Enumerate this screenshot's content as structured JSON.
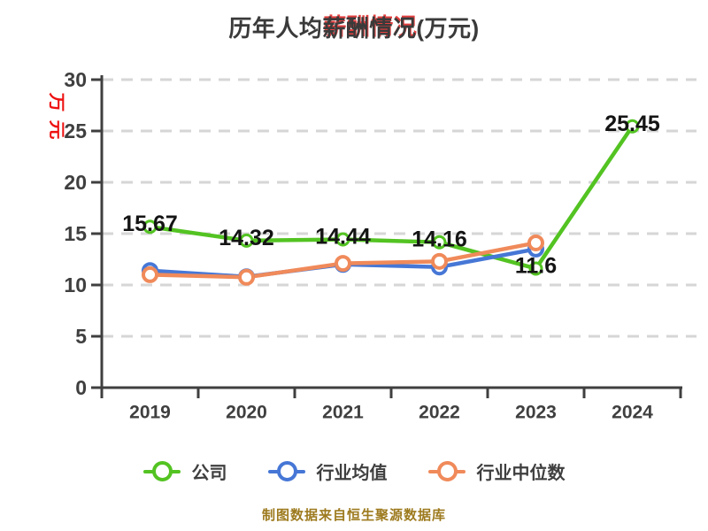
{
  "title": {
    "text": "历年人均薪酬情况(万元)",
    "prefix": "历年人均",
    "highlight": "薪酬情况",
    "suffix": "(万元)"
  },
  "y_axis": {
    "unit_label": "万元",
    "unit_chars": [
      "万",
      "元"
    ],
    "ticks": [
      0,
      5,
      10,
      15,
      20,
      25,
      30
    ]
  },
  "footnote": "制图数据来自恒生聚源数据库",
  "colors": {
    "company": "#53c322",
    "industry_avg": "#4677d6",
    "industry_median": "#f08a5a",
    "axis_text": "#3f3f3f",
    "grid": "#d6d6d6",
    "unit_label": "#ee1010",
    "footnote": "#9d7a1e",
    "point_label_text": "#141414"
  },
  "chart_data": {
    "type": "line",
    "title": "历年人均薪酬情况(万元)",
    "categories": [
      "2019",
      "2020",
      "2021",
      "2022",
      "2023",
      "2024"
    ],
    "series": [
      {
        "name": "公司",
        "color": "#53c322",
        "values": [
          15.67,
          14.32,
          14.44,
          14.16,
          11.6,
          25.45
        ],
        "point_labels": [
          "15.67",
          "14.32",
          "14.44",
          "14.16",
          "11.6",
          "25.45"
        ]
      },
      {
        "name": "行业均值",
        "color": "#4677d6",
        "values": [
          11.4,
          10.8,
          12.0,
          11.75,
          13.5,
          null
        ],
        "point_labels": null
      },
      {
        "name": "行业中位数",
        "color": "#f08a5a",
        "values": [
          11.0,
          10.75,
          12.1,
          12.3,
          14.1,
          null
        ],
        "point_labels": null
      }
    ],
    "ylim": [
      0,
      30
    ],
    "yticks": [
      0,
      5,
      10,
      15,
      20,
      25,
      30
    ],
    "grid": "horizontal-dashed",
    "legend_position": "bottom"
  }
}
